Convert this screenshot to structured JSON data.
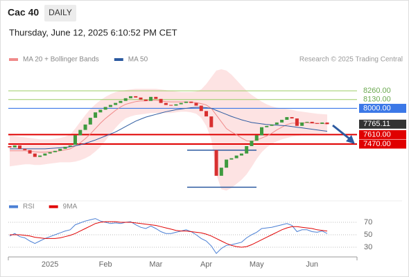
{
  "header": {
    "symbol": "Cac 40",
    "interval": "DAILY",
    "timestamp": "Thursday, June 12, 2025 6:10:52 PM CET",
    "credit": "Research © 2025 Trading Central"
  },
  "chart_data": [
    {
      "type": "candlestick",
      "up_color": "#3f9a3f",
      "down_color": "#d83030",
      "ylim": [
        6680,
        8600
      ],
      "open": [
        7440,
        7420,
        7450,
        7400,
        7380,
        7330,
        7280,
        7300,
        7330,
        7350,
        7370,
        7400,
        7430,
        7460,
        7600,
        7680,
        7760,
        7860,
        7940,
        7980,
        8020,
        8050,
        8080,
        8110,
        8150,
        8180,
        8160,
        8130,
        8110,
        8170,
        8140,
        8080,
        8050,
        8040,
        8060,
        8080,
        8100,
        8080,
        8040,
        7960,
        7880,
        7380,
        7000,
        7120,
        7240,
        7260,
        7300,
        7330,
        7440,
        7520,
        7600,
        7720,
        7740,
        7760,
        7790,
        7830,
        7870,
        7850,
        7740,
        7790,
        7800,
        7780,
        7770,
        7790
      ],
      "close": [
        7420,
        7450,
        7400,
        7380,
        7330,
        7280,
        7300,
        7330,
        7350,
        7370,
        7400,
        7430,
        7450,
        7600,
        7680,
        7760,
        7860,
        7940,
        7980,
        8020,
        8050,
        8080,
        8110,
        8150,
        8180,
        8160,
        8130,
        8110,
        8170,
        8140,
        8080,
        8050,
        8040,
        8060,
        8080,
        8100,
        8080,
        8040,
        7960,
        7880,
        7720,
        7000,
        7120,
        7240,
        7260,
        7300,
        7330,
        7440,
        7520,
        7600,
        7720,
        7740,
        7760,
        7790,
        7830,
        7870,
        7850,
        7740,
        7790,
        7800,
        7780,
        7770,
        7790,
        7765.11
      ],
      "series": [
        {
          "name": "MA 20 + Bollinger Bands",
          "color": "#f08a8a",
          "band_color": "#fde3e3",
          "values": [
            7370,
            7370,
            7370,
            7370,
            7365,
            7355,
            7350,
            7350,
            7355,
            7360,
            7370,
            7385,
            7400,
            7440,
            7490,
            7550,
            7620,
            7700,
            7780,
            7850,
            7910,
            7970,
            8020,
            8060,
            8080,
            8100,
            8110,
            8110,
            8120,
            8120,
            8110,
            8100,
            8095,
            8095,
            8095,
            8095,
            8090,
            8085,
            8070,
            8050,
            8000,
            7900,
            7800,
            7700,
            7650,
            7610,
            7560,
            7520,
            7510,
            7530,
            7560,
            7590,
            7630,
            7680,
            7720,
            7760,
            7780,
            7780,
            7785,
            7785,
            7780,
            7780,
            7775,
            7770
          ],
          "upper": [
            7600,
            7590,
            7580,
            7570,
            7560,
            7550,
            7540,
            7540,
            7540,
            7550,
            7560,
            7580,
            7610,
            7700,
            7800,
            7900,
            7990,
            8060,
            8120,
            8170,
            8210,
            8240,
            8260,
            8270,
            8280,
            8290,
            8290,
            8290,
            8290,
            8290,
            8280,
            8270,
            8260,
            8250,
            8240,
            8240,
            8240,
            8250,
            8280,
            8360,
            8460,
            8560,
            8580,
            8560,
            8500,
            8420,
            8340,
            8260,
            8200,
            8150,
            8100,
            8060,
            8030,
            8010,
            8000,
            7990,
            7980,
            7960,
            7950,
            7940,
            7930,
            7920,
            7915,
            7910
          ],
          "lower": [
            7140,
            7150,
            7160,
            7170,
            7170,
            7160,
            7160,
            7170,
            7180,
            7190,
            7200,
            7200,
            7200,
            7210,
            7230,
            7260,
            7300,
            7360,
            7430,
            7520,
            7620,
            7710,
            7790,
            7850,
            7880,
            7900,
            7910,
            7920,
            7930,
            7930,
            7930,
            7930,
            7930,
            7940,
            7950,
            7950,
            7940,
            7920,
            7860,
            7740,
            7540,
            7020,
            6800,
            6780,
            6820,
            6880,
            6940,
            7020,
            7130,
            7250,
            7350,
            7420,
            7470,
            7510,
            7540,
            7560,
            7580,
            7590,
            7600,
            7610,
            7620,
            7625,
            7630,
            7630
          ]
        },
        {
          "name": "MA 50",
          "color": "#2c5aa0",
          "values": [
            7400,
            7400,
            7400,
            7400,
            7400,
            7400,
            7400,
            7400,
            7405,
            7410,
            7415,
            7420,
            7430,
            7445,
            7460,
            7480,
            7505,
            7530,
            7560,
            7590,
            7620,
            7650,
            7690,
            7730,
            7770,
            7810,
            7840,
            7870,
            7890,
            7910,
            7930,
            7950,
            7965,
            7980,
            7990,
            8000,
            8010,
            8015,
            8015,
            8010,
            8000,
            7970,
            7940,
            7910,
            7880,
            7855,
            7830,
            7810,
            7790,
            7780,
            7770,
            7760,
            7755,
            7750,
            7745,
            7740,
            7730,
            7720,
            7710,
            7700,
            7690,
            7680,
            7670,
            7660
          ]
        }
      ],
      "levels": [
        {
          "value": 8260,
          "label": "8260.00",
          "kind": "resistance",
          "color": "#9ccc65"
        },
        {
          "value": 8130,
          "label": "8130.00",
          "kind": "resistance",
          "color": "#9ccc65"
        },
        {
          "value": 8000,
          "label": "8000.00",
          "kind": "pivot",
          "color": "#3b78e7"
        },
        {
          "value": 7765.11,
          "kind": "last",
          "color": "#333333"
        },
        {
          "value": 7610,
          "label": "7610.00",
          "kind": "support",
          "color": "#e00000"
        },
        {
          "value": 7470,
          "label": "7470.00",
          "kind": "support",
          "color": "#e00000"
        }
      ],
      "range_lines": [
        7380,
        6830
      ],
      "range_color": "#2c5aa0"
    },
    {
      "type": "line",
      "categories": [
        null,
        null,
        null,
        null,
        null,
        null,
        null,
        null,
        "2025",
        null,
        null,
        null,
        null,
        null,
        null,
        null,
        null,
        null,
        null,
        "Feb",
        null,
        null,
        null,
        null,
        null,
        null,
        null,
        null,
        null,
        "Mar",
        null,
        null,
        null,
        null,
        null,
        null,
        null,
        null,
        null,
        "Apr",
        null,
        null,
        null,
        null,
        null,
        null,
        null,
        null,
        null,
        "May",
        null,
        null,
        null,
        null,
        null,
        null,
        null,
        null,
        null,
        null,
        "Jun",
        null,
        null,
        null
      ],
      "series": [
        {
          "name": "RSI",
          "color": "#4a7fd4",
          "values": [
            48,
            52,
            47,
            45,
            40,
            36,
            40,
            44,
            47,
            50,
            53,
            56,
            58,
            66,
            69,
            72,
            74,
            76,
            72,
            70,
            68,
            69,
            68,
            70,
            71,
            66,
            62,
            60,
            64,
            60,
            55,
            52,
            52,
            54,
            56,
            58,
            55,
            50,
            44,
            40,
            32,
            20,
            28,
            33,
            34,
            36,
            38,
            45,
            50,
            54,
            60,
            61,
            62,
            64,
            66,
            68,
            65,
            55,
            58,
            58,
            55,
            54,
            56,
            52
          ]
        },
        {
          "name": "9MA",
          "color": "#e00000",
          "values": [
            50,
            50,
            50,
            49,
            48,
            46,
            45,
            44,
            44,
            44,
            45,
            47,
            49,
            52,
            56,
            60,
            64,
            68,
            70,
            71,
            71,
            71,
            70,
            70,
            70,
            69,
            68,
            67,
            66,
            65,
            63,
            61,
            59,
            57,
            56,
            56,
            55,
            54,
            53,
            51,
            48,
            44,
            40,
            36,
            33,
            31,
            30,
            31,
            34,
            38,
            42,
            46,
            50,
            54,
            58,
            61,
            63,
            63,
            62,
            61,
            60,
            58,
            57,
            56
          ]
        }
      ],
      "ylim": [
        18,
        82
      ],
      "yticks": [
        30,
        50,
        70
      ],
      "grid": true
    }
  ]
}
